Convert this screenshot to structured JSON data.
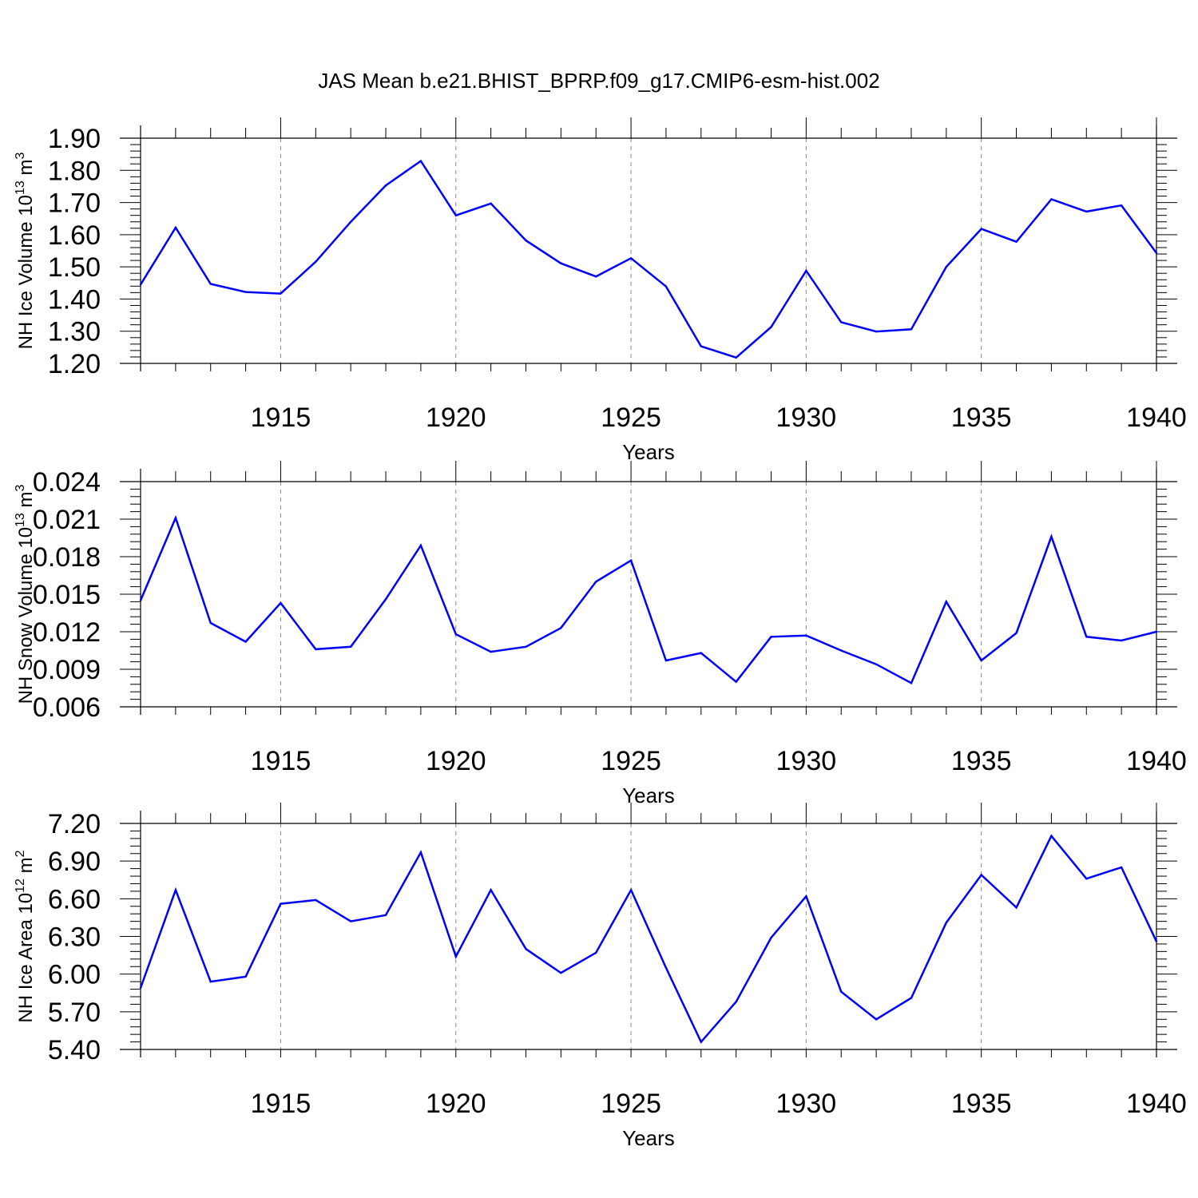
{
  "figure": {
    "title": "JAS Mean b.e21.BHIST_BPRP.f09_g17.CMIP6-esm-hist.002"
  },
  "chart_data": [
    {
      "type": "line",
      "ylabel": "NH Ice Volume 10",
      "ylabel_sup": "13",
      "ylabel_unit": " m",
      "ylabel_unit_sup": "3",
      "xlabel": "Years",
      "xlim": [
        1911,
        1940
      ],
      "ylim": [
        1.2,
        1.9
      ],
      "y_ticks": [
        "1.20",
        "1.30",
        "1.40",
        "1.50",
        "1.60",
        "1.70",
        "1.80",
        "1.90"
      ],
      "y_tick_values": [
        1.2,
        1.3,
        1.4,
        1.5,
        1.6,
        1.7,
        1.8,
        1.9
      ],
      "x_ticks": [
        "1915",
        "1920",
        "1925",
        "1930",
        "1935",
        "1940"
      ],
      "x_tick_values": [
        1915,
        1920,
        1925,
        1930,
        1935,
        1940
      ],
      "grid": "vertical dashed at major x ticks",
      "line_color": "#0000ff",
      "series": [
        {
          "x": [
            1911,
            1912,
            1913,
            1914,
            1915,
            1916,
            1917,
            1918,
            1919,
            1920,
            1921,
            1922,
            1923,
            1924,
            1925,
            1926,
            1927,
            1928,
            1929,
            1930,
            1931,
            1932,
            1933,
            1934,
            1935,
            1936,
            1937,
            1938,
            1939,
            1940
          ],
          "values": [
            1.445,
            1.622,
            1.447,
            1.422,
            1.417,
            1.516,
            1.64,
            1.753,
            1.829,
            1.66,
            1.697,
            1.582,
            1.511,
            1.47,
            1.527,
            1.439,
            1.253,
            1.218,
            1.313,
            1.488,
            1.328,
            1.299,
            1.306,
            1.5,
            1.618,
            1.578,
            1.71,
            1.672,
            1.691,
            1.543
          ]
        }
      ]
    },
    {
      "type": "line",
      "ylabel": "NH Snow Volume 10",
      "ylabel_sup": "13",
      "ylabel_unit": " m",
      "ylabel_unit_sup": "3",
      "xlabel": "Years",
      "xlim": [
        1911,
        1940
      ],
      "ylim": [
        0.006,
        0.024
      ],
      "y_ticks": [
        "0.006",
        "0.009",
        "0.012",
        "0.015",
        "0.018",
        "0.021",
        "0.024"
      ],
      "y_tick_values": [
        0.006,
        0.009,
        0.012,
        0.015,
        0.018,
        0.021,
        0.024
      ],
      "x_ticks": [
        "1915",
        "1920",
        "1925",
        "1930",
        "1935",
        "1940"
      ],
      "x_tick_values": [
        1915,
        1920,
        1925,
        1930,
        1935,
        1940
      ],
      "grid": "vertical dashed at major x ticks",
      "line_color": "#0000ff",
      "series": [
        {
          "x": [
            1911,
            1912,
            1913,
            1914,
            1915,
            1916,
            1917,
            1918,
            1919,
            1920,
            1921,
            1922,
            1923,
            1924,
            1925,
            1926,
            1927,
            1928,
            1929,
            1930,
            1931,
            1932,
            1933,
            1934,
            1935,
            1936,
            1937,
            1938,
            1939,
            1940
          ],
          "values": [
            0.0145,
            0.0211,
            0.0127,
            0.0112,
            0.0143,
            0.0106,
            0.0108,
            0.0146,
            0.0189,
            0.0118,
            0.0104,
            0.0108,
            0.0123,
            0.016,
            0.0177,
            0.0097,
            0.0103,
            0.008,
            0.0116,
            0.0117,
            0.0105,
            0.0094,
            0.0079,
            0.0144,
            0.0097,
            0.0119,
            0.0196,
            0.0116,
            0.0113,
            0.012
          ]
        }
      ]
    },
    {
      "type": "line",
      "ylabel": "NH Ice Area 10",
      "ylabel_sup": "12",
      "ylabel_unit": " m",
      "ylabel_unit_sup": "2",
      "xlabel": "Years",
      "xlim": [
        1911,
        1940
      ],
      "ylim": [
        5.4,
        7.2
      ],
      "y_ticks": [
        "5.40",
        "5.70",
        "6.00",
        "6.30",
        "6.60",
        "6.90",
        "7.20"
      ],
      "y_tick_values": [
        5.4,
        5.7,
        6.0,
        6.3,
        6.6,
        6.9,
        7.2
      ],
      "x_ticks": [
        "1915",
        "1920",
        "1925",
        "1930",
        "1935",
        "1940"
      ],
      "x_tick_values": [
        1915,
        1920,
        1925,
        1930,
        1935,
        1940
      ],
      "grid": "vertical dashed at major x ticks",
      "line_color": "#0000ff",
      "series": [
        {
          "x": [
            1911,
            1912,
            1913,
            1914,
            1915,
            1916,
            1917,
            1918,
            1919,
            1920,
            1921,
            1922,
            1923,
            1924,
            1925,
            1926,
            1927,
            1928,
            1929,
            1930,
            1931,
            1932,
            1933,
            1934,
            1935,
            1936,
            1937,
            1938,
            1939,
            1940
          ],
          "values": [
            5.89,
            6.67,
            5.94,
            5.98,
            6.56,
            6.59,
            6.42,
            6.47,
            6.97,
            6.14,
            6.67,
            6.2,
            6.01,
            6.17,
            6.67,
            6.05,
            5.46,
            5.78,
            6.29,
            6.62,
            5.86,
            5.64,
            5.81,
            6.41,
            6.79,
            6.53,
            7.1,
            6.76,
            6.85,
            6.26
          ]
        }
      ]
    }
  ]
}
